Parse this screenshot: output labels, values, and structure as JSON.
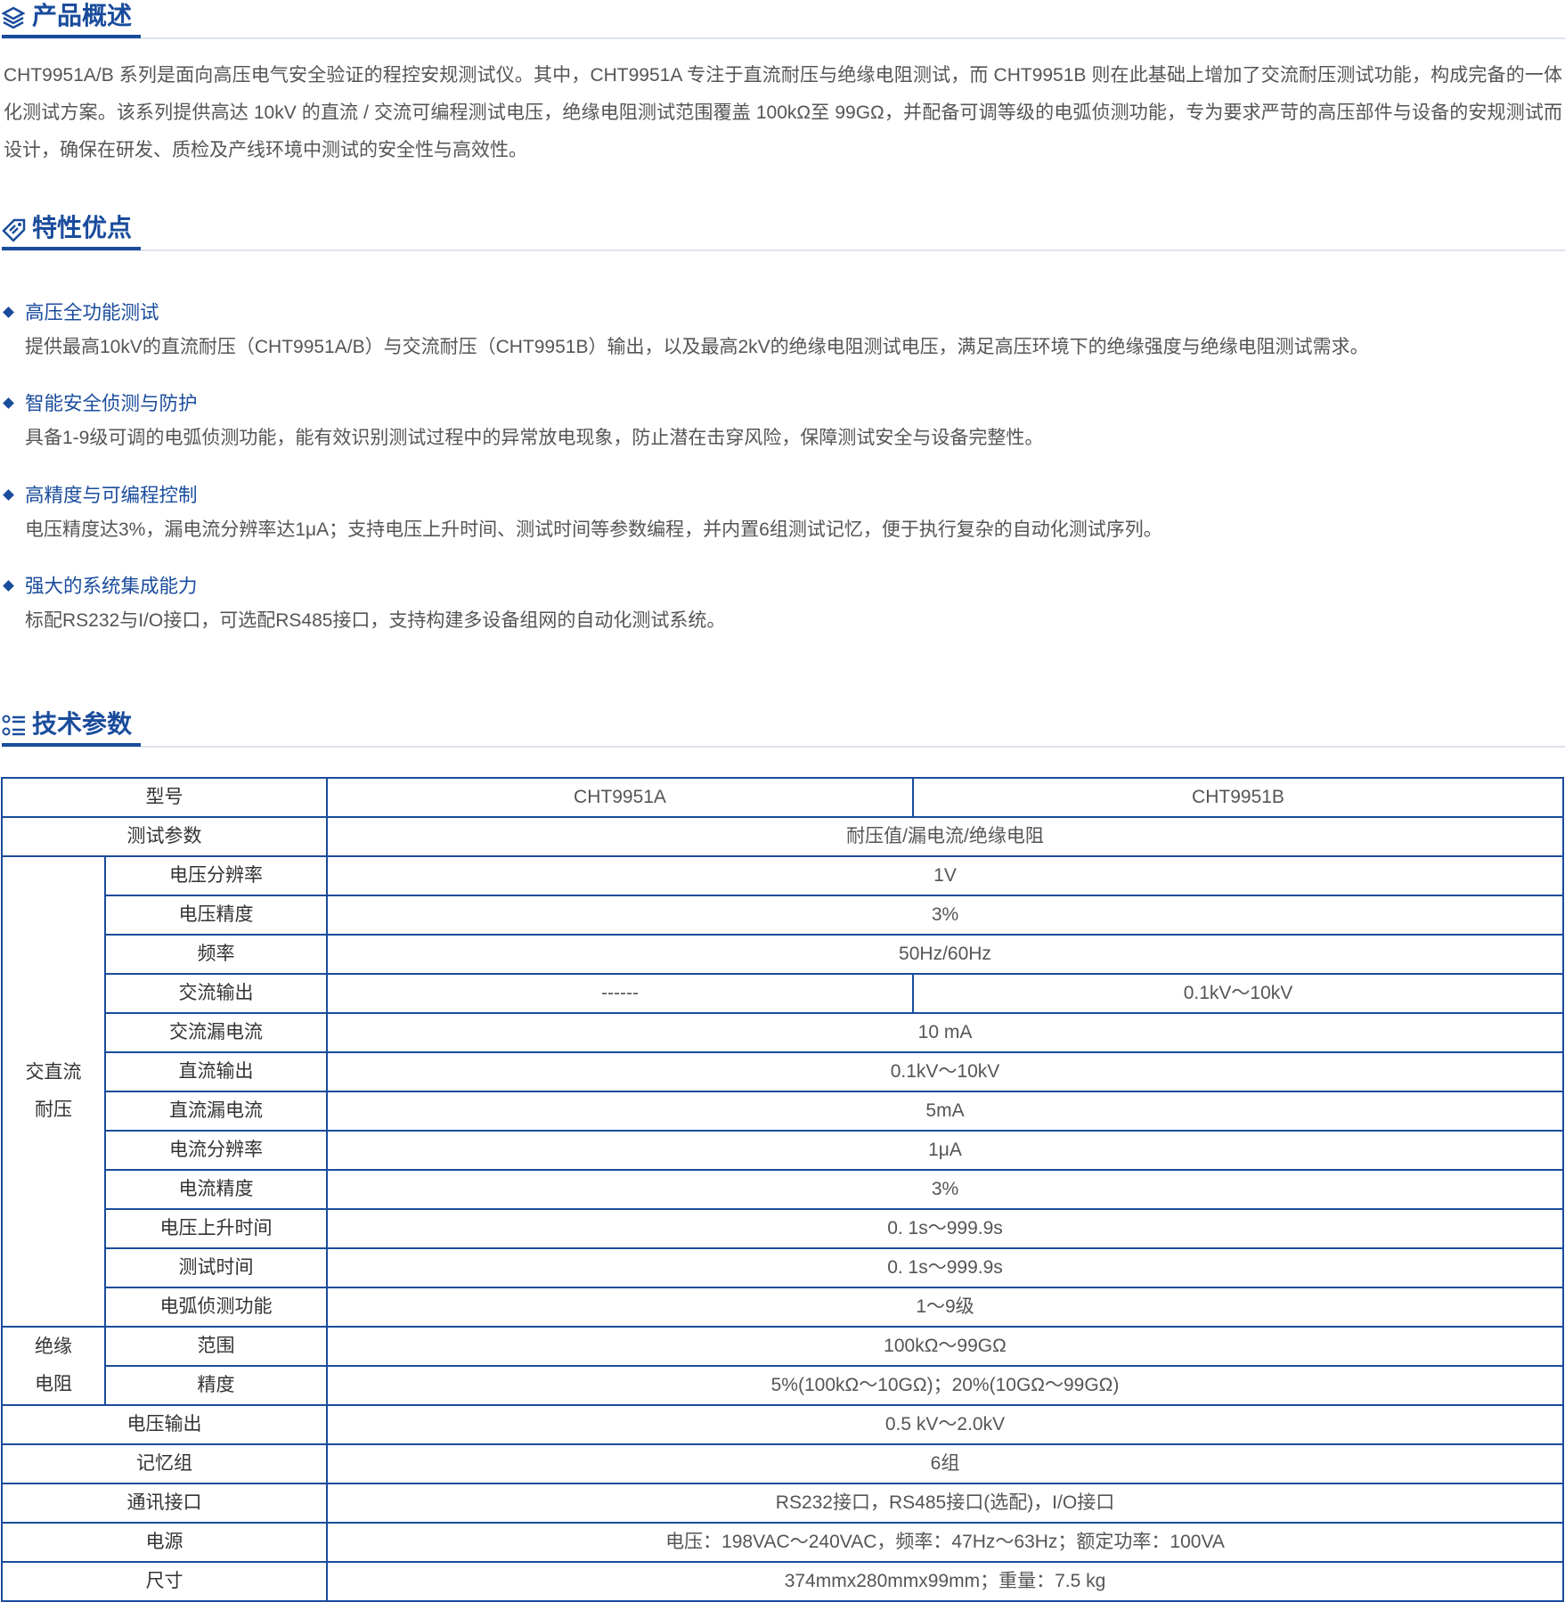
{
  "sections": [
    {
      "title": "产品概述"
    },
    {
      "title": "特性优点"
    },
    {
      "title": "技术参数"
    }
  ],
  "overview": "CHT9951A/B 系列是面向高压电气安全验证的程控安规测试仪。其中，CHT9951A 专注于直流耐压与绝缘电阻测试，而 CHT9951B 则在此基础上增加了交流耐压测试功能，构成完备的一体化测试方案。该系列提供高达 10kV 的直流 / 交流可编程测试电压，绝缘电阻测试范围覆盖 100kΩ至 99GΩ，并配备可调等级的电弧侦测功能，专为要求严苛的高压部件与设备的安规测试而设计，确保在研发、质检及产线环境中测试的安全性与高效性。",
  "features": [
    {
      "title": "高压全功能测试",
      "text": "提供最高10kV的直流耐压（CHT9951A/B）与交流耐压（CHT9951B）输出，以及最高2kV的绝缘电阻测试电压，满足高压环境下的绝缘强度与绝缘电阻测试需求。"
    },
    {
      "title": "智能安全侦测与防护",
      "text": "具备1-9级可调的电弧侦测功能，能有效识别测试过程中的异常放电现象，防止潜在击穿风险，保障测试安全与设备完整性。"
    },
    {
      "title": "高精度与可编程控制",
      "text": "电压精度达3%，漏电流分辨率达1μA；支持电压上升时间、测试时间等参数编程，并内置6组测试记忆，便于执行复杂的自动化测试序列。"
    },
    {
      "title": "强大的系统集成能力",
      "text": "标配RS232与I/O接口，可选配RS485接口，支持构建多设备组网的自动化测试系统。"
    }
  ],
  "table": {
    "rows": [
      [
        "型号",
        "CHT9951A",
        "CHT9951B"
      ],
      [
        "测试参数",
        "耐压值/漏电流/绝缘电阻"
      ],
      [
        "交直流耐压",
        "电压分辨率",
        "1V"
      ],
      [
        "电压精度",
        "3%"
      ],
      [
        "频率",
        "50Hz/60Hz"
      ],
      [
        "交流输出",
        "------",
        "0.1kV～10kV"
      ],
      [
        "交流漏电流",
        "10 mA"
      ],
      [
        "直流输出",
        "0.1kV～10kV"
      ],
      [
        "直流漏电流",
        "5mA"
      ],
      [
        "电流分辨率",
        "1μA"
      ],
      [
        "电流精度",
        "3%"
      ],
      [
        "电压上升时间",
        "0. 1s～999.9s"
      ],
      [
        "测试时间",
        "0. 1s～999.9s"
      ],
      [
        "电弧侦测功能",
        "1～9级"
      ],
      [
        "绝缘电阻",
        "范围",
        "100kΩ～99GΩ"
      ],
      [
        "精度",
        "5%(100kΩ～10GΩ)；20%(10GΩ～99GΩ)"
      ],
      [
        "电压输出",
        "0.5 kV～2.0kV"
      ],
      [
        "记忆组",
        "6组"
      ],
      [
        "通讯接口",
        "RS232接口，RS485接口(选配)，I/O接口"
      ],
      [
        "电源",
        "电压：198VAC～240VAC，频率：47Hz～63Hz；额定功率：100VA"
      ],
      [
        "尺寸",
        "374mmx280mmx99mm；重量：7.5 kg"
      ]
    ]
  }
}
